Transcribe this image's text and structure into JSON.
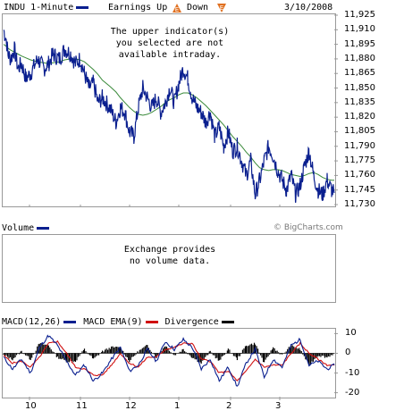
{
  "header": {
    "symbol_label": "INDU 1-Minute",
    "earnings_label": "Earnings Up",
    "down_label": "Down",
    "date": "3/10/2008",
    "earnings_up_glyph": "E",
    "earnings_down_glyph": "E",
    "series_color": "#0a1f8f",
    "earnings_color": "#e07020"
  },
  "price_notice": {
    "line1": "The upper indicator(s)",
    "line2": "you selected are not",
    "line3": "available intraday."
  },
  "volume": {
    "label": "Volume",
    "notice_line1": "Exchange provides",
    "notice_line2": "no volume data."
  },
  "watermark": "© BigCharts.com",
  "macd": {
    "label_macd": "MACD(12,26)",
    "label_ema": "MACD EMA(9)",
    "label_div": "Divergence",
    "macd_color": "#0a1f8f",
    "ema_color": "#d01010",
    "div_color": "#000000"
  },
  "chart_data": [
    {
      "type": "line",
      "title": "INDU 1-Minute",
      "x_tick_labels": [
        "10",
        "11",
        "12",
        "1",
        "2",
        "3"
      ],
      "ylim": [
        11730,
        11925
      ],
      "y_ticks": [
        "11,925",
        "11,910",
        "11,895",
        "11,880",
        "11,865",
        "11,850",
        "11,835",
        "11,820",
        "11,805",
        "11,790",
        "11,775",
        "11,760",
        "11,745",
        "11,730"
      ],
      "x": [
        0,
        3,
        5,
        8,
        12,
        16,
        20,
        25,
        30,
        38,
        45,
        50,
        55,
        62,
        68,
        75,
        80,
        85,
        90,
        95,
        100,
        105,
        110,
        118,
        125,
        130,
        135,
        140,
        145,
        150,
        155,
        160,
        165,
        170,
        175,
        180,
        185,
        190,
        195,
        200,
        205,
        210,
        215,
        220,
        225,
        230,
        235,
        240,
        245,
        250,
        255,
        260,
        265,
        270,
        275,
        280,
        285,
        290,
        295,
        300,
        305,
        310,
        315,
        320,
        325,
        330,
        335,
        340,
        345,
        350,
        355,
        360,
        365,
        368
      ],
      "series": [
        {
          "name": "INDU",
          "values": [
            11910,
            11900,
            11885,
            11880,
            11890,
            11870,
            11875,
            11860,
            11865,
            11880,
            11870,
            11875,
            11885,
            11880,
            11890,
            11885,
            11875,
            11880,
            11865,
            11850,
            11855,
            11835,
            11840,
            11830,
            11815,
            11830,
            11825,
            11805,
            11800,
            11830,
            11850,
            11840,
            11830,
            11840,
            11825,
            11835,
            11850,
            11835,
            11855,
            11870,
            11860,
            11840,
            11830,
            11825,
            11815,
            11825,
            11800,
            11810,
            11790,
            11805,
            11785,
            11790,
            11775,
            11760,
            11775,
            11740,
            11755,
            11775,
            11790,
            11780,
            11765,
            11755,
            11745,
            11760,
            11740,
            11750,
            11770,
            11785,
            11760,
            11745,
            11740,
            11755,
            11745,
            11742
          ]
        },
        {
          "name": "Moving Average",
          "values": [
            11895,
            11893,
            11891,
            11889,
            11887,
            11885,
            11883,
            11881,
            11879,
            11877,
            11876,
            11875,
            11876,
            11877,
            11879,
            11880,
            11880,
            11879,
            11877,
            11873,
            11869,
            11864,
            11858,
            11852,
            11846,
            11840,
            11835,
            11830,
            11826,
            11823,
            11822,
            11823,
            11825,
            11828,
            11831,
            11835,
            11838,
            11840,
            11843,
            11845,
            11845,
            11843,
            11840,
            11836,
            11832,
            11827,
            11822,
            11817,
            11812,
            11806,
            11800,
            11795,
            11790,
            11784,
            11779,
            11773,
            11768,
            11766,
            11765,
            11766,
            11766,
            11765,
            11763,
            11761,
            11760,
            11759,
            11760,
            11762,
            11763,
            11761,
            11758,
            11756,
            11755,
            11755
          ]
        }
      ]
    },
    {
      "type": "line",
      "title": "MACD(12,26)",
      "x_tick_labels": [
        "10",
        "11",
        "12",
        "1",
        "2",
        "3"
      ],
      "ylim": [
        -22,
        12
      ],
      "y_ticks": [
        "10",
        "0",
        "-10",
        "-20"
      ],
      "x": [
        0,
        10,
        20,
        30,
        40,
        50,
        60,
        70,
        80,
        90,
        100,
        110,
        120,
        130,
        140,
        150,
        160,
        170,
        180,
        190,
        200,
        210,
        220,
        230,
        240,
        250,
        260,
        270,
        280,
        290,
        300,
        310,
        320,
        330,
        340,
        350,
        360,
        368
      ],
      "series": [
        {
          "name": "MACD(12,26)",
          "values": [
            -2,
            -8,
            -3,
            -10,
            3,
            9,
            4,
            -4,
            -11,
            -6,
            -14,
            -10,
            -3,
            3,
            -9,
            -6,
            2,
            -4,
            6,
            2,
            7,
            3,
            -8,
            -3,
            -14,
            -7,
            -17,
            -5,
            2,
            -12,
            -3,
            -7,
            4,
            7,
            -6,
            -4,
            -8,
            -6
          ]
        },
        {
          "name": "MACD EMA(9)",
          "values": [
            -1,
            -5,
            -4,
            -7,
            -2,
            5,
            6,
            0,
            -7,
            -8,
            -11,
            -11,
            -6,
            0,
            -5,
            -7,
            -2,
            -2,
            2,
            3,
            5,
            5,
            -3,
            -4,
            -10,
            -9,
            -14,
            -9,
            -3,
            -7,
            -6,
            -6,
            0,
            5,
            0,
            -3,
            -6,
            -6
          ]
        },
        {
          "name": "Divergence",
          "values": [
            -1,
            -3,
            1,
            -3,
            5,
            4,
            -2,
            -4,
            -4,
            2,
            -3,
            1,
            3,
            3,
            -4,
            1,
            4,
            -2,
            4,
            -1,
            2,
            -2,
            -5,
            1,
            -4,
            2,
            -3,
            4,
            5,
            -5,
            3,
            -1,
            4,
            2,
            -6,
            -1,
            -2,
            0
          ]
        }
      ]
    }
  ]
}
